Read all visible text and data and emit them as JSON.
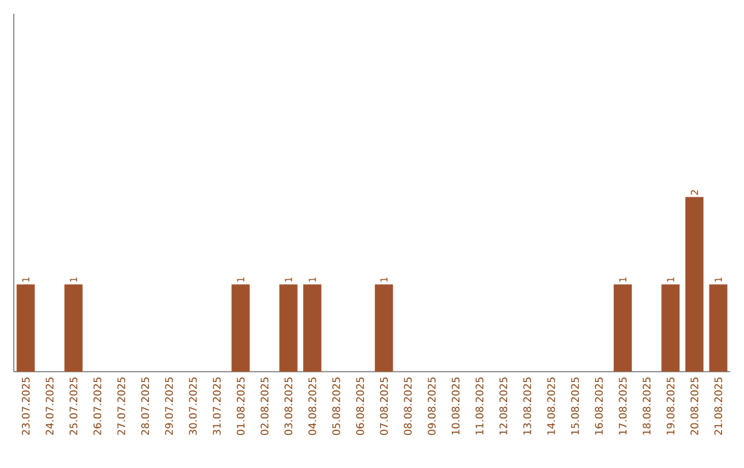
{
  "chart_data": {
    "type": "bar",
    "categories": [
      "23.07.2025",
      "24.07.2025",
      "25.07.2025",
      "26.07.2025",
      "27.07.2025",
      "28.07.2025",
      "29.07.2025",
      "30.07.2025",
      "31.07.2025",
      "01.08.2025",
      "02.08.2025",
      "03.08.2025",
      "04.08.2025",
      "05.08.2025",
      "06.08.2025",
      "07.08.2025",
      "08.08.2025",
      "09.08.2025",
      "10.08.2025",
      "11.08.2025",
      "12.08.2025",
      "13.08.2025",
      "14.08.2025",
      "15.08.2025",
      "16.08.2025",
      "17.08.2025",
      "18.08.2025",
      "19.08.2025",
      "20.08.2025",
      "21.08.2025"
    ],
    "values": [
      1,
      0,
      1,
      0,
      0,
      0,
      0,
      0,
      0,
      1,
      0,
      1,
      1,
      0,
      0,
      1,
      0,
      0,
      0,
      0,
      0,
      0,
      0,
      0,
      0,
      1,
      0,
      1,
      2,
      1
    ],
    "value_labels": [
      "1",
      null,
      "1",
      null,
      null,
      null,
      null,
      null,
      null,
      "1",
      null,
      "1",
      "1",
      null,
      null,
      "1",
      null,
      null,
      null,
      null,
      null,
      null,
      null,
      null,
      null,
      "1",
      null,
      "1",
      "2",
      "1"
    ],
    "color": "#a0522d",
    "tick_labels": "x"
  }
}
